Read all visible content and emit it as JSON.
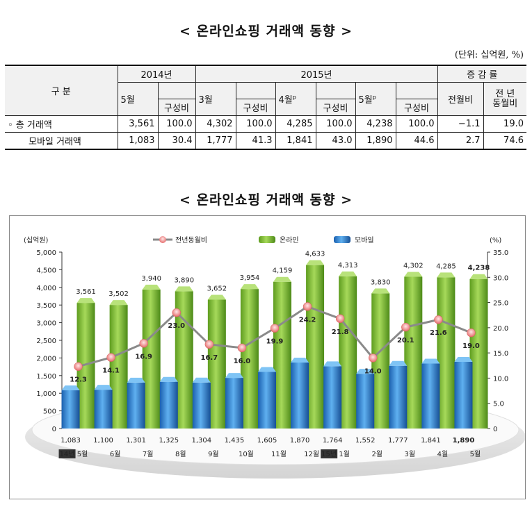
{
  "title_top": "< 온라인쇼핑 거래액 동향 >",
  "unit": "(단위: 십억원, %)",
  "table": {
    "h_gubun": "구  분",
    "h_2014": "2014년",
    "h_2015": "2015년",
    "h_change": "증 감 률",
    "h_may14": "5월",
    "h_comp": "구성비",
    "h_mar": "3월",
    "h_apr": "4월",
    "h_may15": "5월",
    "h_p": "p",
    "h_mom": "전월비",
    "h_yoy1": "전    년",
    "h_yoy2": "동월비",
    "rows": [
      {
        "label": "◦ 총 거래액",
        "v": [
          "3,561",
          "100.0",
          "4,302",
          "100.0",
          "4,285",
          "100.0",
          "4,238",
          "100.0",
          "−1.1",
          "19.0"
        ]
      },
      {
        "label": "모바일 거래액",
        "v": [
          "1,083",
          "30.4",
          "1,777",
          "41.3",
          "1,841",
          "43.0",
          "1,890",
          "44.6",
          "2.7",
          "74.6"
        ]
      }
    ]
  },
  "title_chart": "< 온라인쇼핑 거래액 동향 >",
  "chart_data": {
    "type": "bar",
    "categories": [
      "5월",
      "6월",
      "7월",
      "8월",
      "9월",
      "10월",
      "11월",
      "12월",
      "1월",
      "2월",
      "3월",
      "4월",
      "5월"
    ],
    "year_tags": [
      {
        "index": 0,
        "text": "14년"
      },
      {
        "index": 8,
        "text": "15년"
      }
    ],
    "series": [
      {
        "name": "온라인",
        "type": "bar",
        "axis": "left",
        "values": [
          3561,
          3502,
          3940,
          3890,
          3652,
          3954,
          4159,
          4633,
          4313,
          3830,
          4302,
          4285,
          4238
        ],
        "labels": [
          "3,561",
          "3,502",
          "3,940",
          "3,890",
          "3,652",
          "3,954",
          "4,159",
          "4,633",
          "4,313",
          "3,830",
          "4,302",
          "4,285",
          "4,238"
        ],
        "color": "#8cc63f"
      },
      {
        "name": "모바일",
        "type": "bar",
        "axis": "left",
        "values": [
          1083,
          1100,
          1301,
          1325,
          1304,
          1435,
          1605,
          1870,
          1764,
          1552,
          1777,
          1841,
          1890
        ],
        "labels": [
          "1,083",
          "1,100",
          "1,301",
          "1,325",
          "1,304",
          "1,435",
          "1,605",
          "1,870",
          "1,764",
          "1,552",
          "1,777",
          "1,841",
          "1,890"
        ],
        "color": "#2d7fd4"
      },
      {
        "name": "전년동월비",
        "type": "line",
        "axis": "right",
        "values": [
          12.3,
          14.1,
          16.9,
          23.0,
          16.7,
          16.0,
          19.9,
          24.2,
          21.8,
          14.0,
          20.1,
          21.6,
          19.0
        ],
        "labels": [
          "12.3",
          "14.1",
          "16.9",
          "23.0",
          "16.7",
          "16.0",
          "19.9",
          "24.2",
          "21.8",
          "14.0",
          "20.1",
          "21.6",
          "19.0"
        ],
        "color": "#8a8a8a"
      }
    ],
    "y_left_label": "(십억원)",
    "y_right_label": "(%)",
    "y_left_ticks": [
      "0",
      "500",
      "1,000",
      "1,500",
      "2,000",
      "2,500",
      "3,000",
      "3,500",
      "4,000",
      "4,500",
      "5,000"
    ],
    "y_right_ticks": [
      "0",
      "5.0",
      "10.0",
      "15.0",
      "20.0",
      "25.0",
      "30.0",
      "35.0"
    ],
    "ylim_left": [
      0,
      5000
    ],
    "ylim_right": [
      0,
      35
    ],
    "legend_position": "top-center"
  }
}
